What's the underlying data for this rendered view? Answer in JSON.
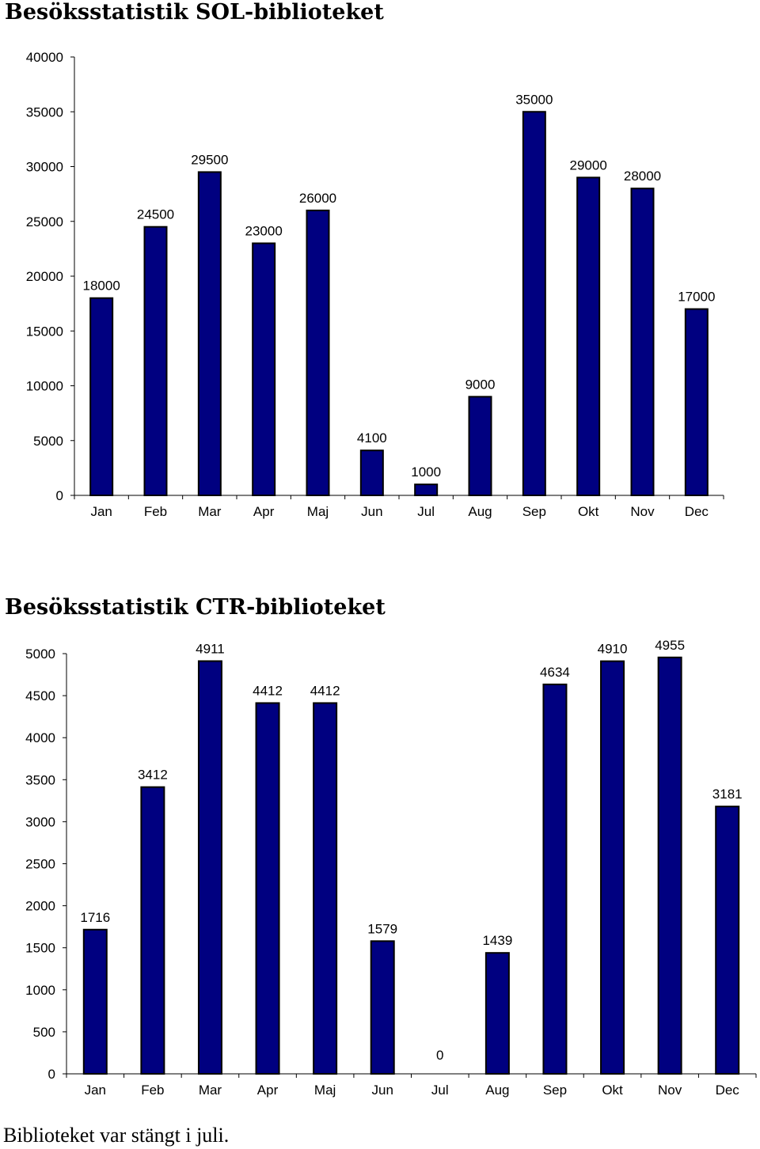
{
  "colors": {
    "bar": "#000080",
    "axis": "#000000",
    "text": "#000000"
  },
  "chart_data": [
    {
      "type": "bar",
      "title": "Besöksstatistik SOL-biblioteket",
      "categories": [
        "Jan",
        "Feb",
        "Mar",
        "Apr",
        "Maj",
        "Jun",
        "Jul",
        "Aug",
        "Sep",
        "Okt",
        "Nov",
        "Dec"
      ],
      "values": [
        18000,
        24500,
        29500,
        23000,
        26000,
        4100,
        1000,
        9000,
        35000,
        29000,
        28000,
        17000
      ],
      "ylim": [
        0,
        40000
      ],
      "yticks": [
        0,
        5000,
        10000,
        15000,
        20000,
        25000,
        30000,
        35000,
        40000
      ],
      "grid": false,
      "data_labels": true
    },
    {
      "type": "bar",
      "title": "Besöksstatistik CTR-biblioteket",
      "categories": [
        "Jan",
        "Feb",
        "Mar",
        "Apr",
        "Maj",
        "Jun",
        "Jul",
        "Aug",
        "Sep",
        "Okt",
        "Nov",
        "Dec"
      ],
      "values": [
        1716,
        3412,
        4911,
        4412,
        4412,
        1579,
        0,
        1439,
        4634,
        4910,
        4955,
        3181
      ],
      "ylim": [
        0,
        5000
      ],
      "yticks": [
        0,
        500,
        1000,
        1500,
        2000,
        2500,
        3000,
        3500,
        4000,
        4500,
        5000
      ],
      "grid": false,
      "data_labels": true
    }
  ],
  "footnote": "Biblioteket var stängt i juli."
}
